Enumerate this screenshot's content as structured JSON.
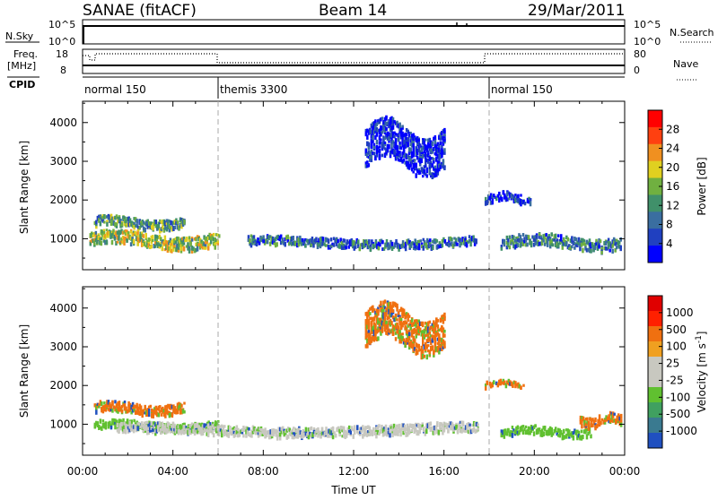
{
  "header": {
    "title": "SANAE (fitACF)",
    "beam": "Beam 14",
    "date": "29/Mar/2011"
  },
  "top_panels": {
    "nsky_label": "N.Sky",
    "nsky_ticks": [
      "10^5",
      "10^0"
    ],
    "nsearch_ticks": [
      "10^5",
      "10^0"
    ],
    "nsearch_label": "N.Search",
    "freq_label_1": "Freq.",
    "freq_label_2": "[MHz]",
    "freq_ticks": [
      "18",
      "8"
    ],
    "nave_ticks": [
      "80",
      "0"
    ],
    "nave_label": "Nave",
    "cpid_label": "CPID",
    "cpid_segments": [
      {
        "label": "normal 150",
        "start_hour": 0,
        "end_hour": 6
      },
      {
        "label": "themis 3300",
        "start_hour": 6,
        "end_hour": 18
      },
      {
        "label": "normal 150",
        "start_hour": 18,
        "end_hour": 24
      }
    ]
  },
  "chart_data": [
    {
      "type": "heatmap",
      "name": "power",
      "ylabel": "Slant Range [km]",
      "y_ticks": [
        "4000",
        "3000",
        "2000",
        "1000"
      ],
      "y_tick_values": [
        4000,
        3000,
        2000,
        1000
      ],
      "ylim": [
        200,
        4550
      ],
      "xlim": [
        0,
        24
      ],
      "colorbar_label": "Power [dB]",
      "colorbar_ticks": [
        "28",
        "24",
        "20",
        "16",
        "12",
        "8",
        "4"
      ],
      "colorbar_colors": [
        "#0000ff",
        "#2040c0",
        "#3a6ea0",
        "#40906a",
        "#70b040",
        "#e0d020",
        "#f09020",
        "#ff4010",
        "#ff0000"
      ],
      "scatter_bands": [
        {
          "x0": 0.3,
          "x1": 6.0,
          "center": 1000,
          "width": 350,
          "power_level": 0.6
        },
        {
          "x0": 0.5,
          "x1": 4.5,
          "center": 1450,
          "width": 250,
          "power_level": 0.45
        },
        {
          "x0": 7.3,
          "x1": 17.5,
          "center": 950,
          "width": 220,
          "power_level": 0.3
        },
        {
          "x0": 18.5,
          "x1": 23.8,
          "center": 950,
          "width": 300,
          "power_level": 0.35
        },
        {
          "x0": 17.8,
          "x1": 19.8,
          "center": 2100,
          "width": 200,
          "power_level": 0.15
        },
        {
          "x0": 12.5,
          "x1": 16.0,
          "center": 3400,
          "width": 1000,
          "power_level": 0.1
        }
      ]
    },
    {
      "type": "heatmap",
      "name": "velocity",
      "ylabel": "Slant Range [km]",
      "y_ticks": [
        "4000",
        "3000",
        "2000",
        "1000"
      ],
      "y_tick_values": [
        4000,
        3000,
        2000,
        1000
      ],
      "ylim": [
        200,
        4550
      ],
      "xlim": [
        0,
        24
      ],
      "xlabel": "Time UT",
      "x_ticks": [
        "00:00",
        "04:00",
        "08:00",
        "12:00",
        "16:00",
        "20:00",
        "00:00"
      ],
      "x_tick_values": [
        0,
        4,
        8,
        12,
        16,
        20,
        24
      ],
      "colorbar_label": "Velocity [m s",
      "colorbar_label_sup": "-1",
      "colorbar_label_end": "]",
      "colorbar_ticks": [
        "1000",
        "500",
        "100",
        "25",
        "-25",
        "-100",
        "-500",
        "-1000"
      ],
      "colorbar_colors": [
        "#2050c0",
        "#3a7a90",
        "#40a060",
        "#60c030",
        "#c8c8c0",
        "#c8c8c0",
        "#f0a020",
        "#f07010",
        "#ff2000",
        "#e00000"
      ],
      "scatter_bands": [
        {
          "x0": 0.5,
          "x1": 4.5,
          "center": 1450,
          "width": 250,
          "velocity_color": "#f07010"
        },
        {
          "x0": 0.5,
          "x1": 6.0,
          "center": 1000,
          "width": 200,
          "velocity_color": "#60c030"
        },
        {
          "x0": 1.5,
          "x1": 17.5,
          "center": 900,
          "width": 250,
          "velocity_color": "#c8c8c0"
        },
        {
          "x0": 18.5,
          "x1": 22.5,
          "center": 850,
          "width": 200,
          "velocity_color": "#60c030"
        },
        {
          "x0": 22.0,
          "x1": 23.8,
          "center": 1150,
          "width": 250,
          "velocity_color": "#f07010"
        },
        {
          "x0": 17.8,
          "x1": 19.5,
          "center": 2100,
          "width": 150,
          "velocity_color": "#f07010"
        },
        {
          "x0": 12.5,
          "x1": 16.0,
          "center": 3500,
          "width": 900,
          "velocity_color": "#f07010"
        }
      ]
    }
  ]
}
